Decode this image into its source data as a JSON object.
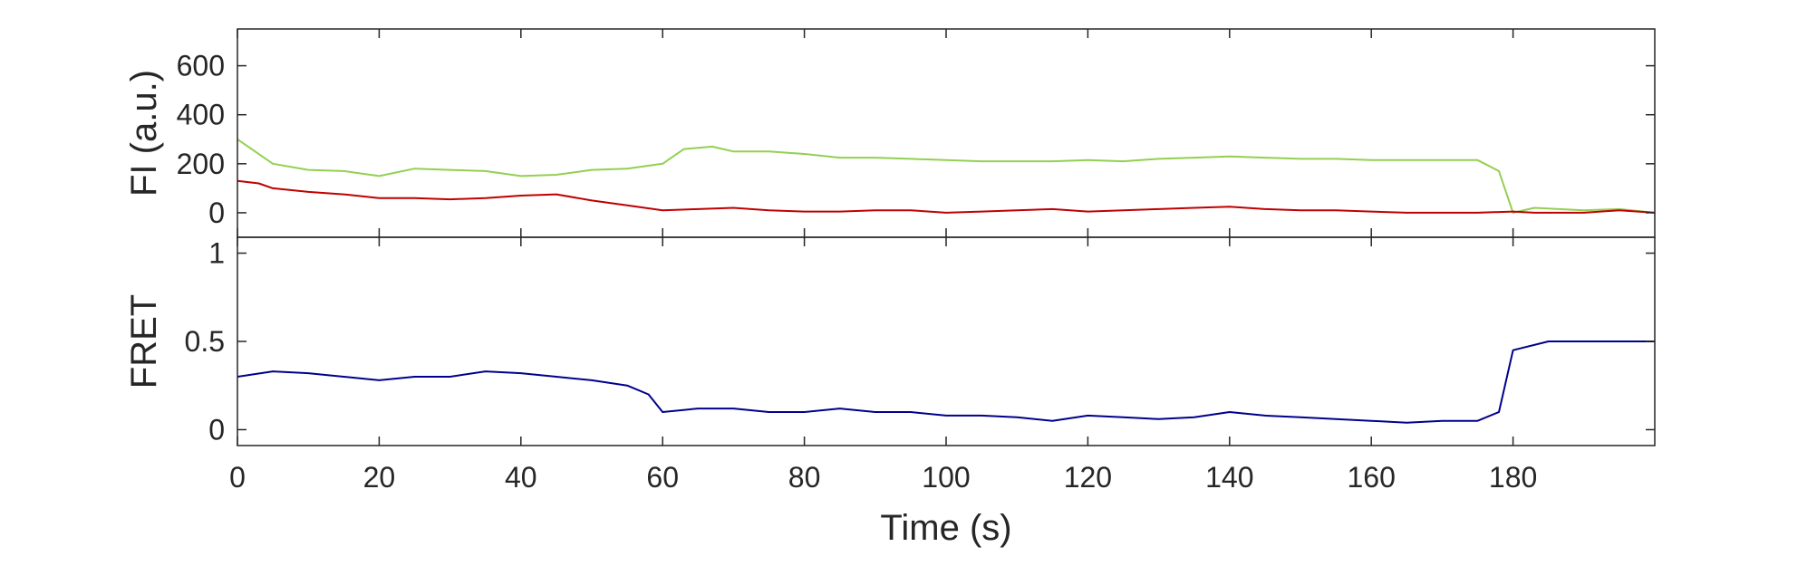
{
  "chart_data": [
    {
      "type": "line",
      "panel": "top",
      "ylabel": "FI (a.u.)",
      "xlim": [
        0,
        200
      ],
      "ylim": [
        -100,
        750
      ],
      "yticks": [
        0,
        200,
        400,
        600
      ],
      "ytick_labels": [
        "0",
        "200",
        "400",
        "600"
      ],
      "grid": false,
      "series": [
        {
          "color": "#92d050",
          "x": [
            0,
            2,
            5,
            10,
            15,
            20,
            25,
            30,
            35,
            40,
            45,
            50,
            55,
            60,
            63,
            67,
            70,
            75,
            80,
            85,
            90,
            95,
            100,
            105,
            110,
            115,
            120,
            125,
            130,
            135,
            140,
            145,
            150,
            155,
            160,
            165,
            170,
            175,
            178,
            180,
            183,
            190,
            195,
            200
          ],
          "values": [
            300,
            260,
            200,
            175,
            170,
            150,
            180,
            175,
            170,
            150,
            155,
            175,
            180,
            200,
            260,
            270,
            250,
            250,
            240,
            225,
            225,
            220,
            215,
            210,
            210,
            210,
            215,
            210,
            220,
            225,
            230,
            225,
            220,
            220,
            215,
            215,
            215,
            215,
            170,
            0,
            20,
            10,
            15,
            0
          ]
        },
        {
          "color": "#c00000",
          "x": [
            0,
            3,
            5,
            10,
            15,
            20,
            25,
            30,
            35,
            40,
            45,
            50,
            55,
            60,
            65,
            70,
            75,
            80,
            85,
            90,
            95,
            100,
            105,
            110,
            115,
            120,
            125,
            130,
            135,
            140,
            145,
            150,
            155,
            160,
            165,
            170,
            175,
            180,
            183,
            190,
            195,
            200
          ],
          "values": [
            130,
            120,
            100,
            85,
            75,
            60,
            60,
            55,
            60,
            70,
            75,
            50,
            30,
            10,
            15,
            20,
            10,
            5,
            5,
            10,
            10,
            0,
            5,
            10,
            15,
            5,
            10,
            15,
            20,
            25,
            15,
            10,
            10,
            5,
            0,
            0,
            0,
            5,
            0,
            0,
            10,
            0
          ]
        }
      ]
    },
    {
      "type": "line",
      "panel": "bottom",
      "xlabel": "Time (s)",
      "ylabel": "FRET",
      "xlim": [
        0,
        200
      ],
      "ylim": [
        -0.09,
        1.09
      ],
      "xticks": [
        0,
        20,
        40,
        60,
        80,
        100,
        120,
        140,
        160,
        180
      ],
      "xtick_labels": [
        "0",
        "20",
        "40",
        "60",
        "80",
        "100",
        "120",
        "140",
        "160",
        "180"
      ],
      "yticks": [
        0,
        0.5,
        1
      ],
      "ytick_labels": [
        "0",
        "0.5",
        "1"
      ],
      "grid": false,
      "series": [
        {
          "color": "#00008b",
          "x": [
            0,
            5,
            10,
            15,
            20,
            25,
            30,
            35,
            40,
            45,
            50,
            55,
            58,
            60,
            65,
            70,
            75,
            80,
            85,
            90,
            95,
            100,
            105,
            110,
            115,
            120,
            125,
            130,
            135,
            140,
            145,
            150,
            155,
            160,
            165,
            170,
            175,
            178,
            180,
            185,
            190,
            195,
            200
          ],
          "values": [
            0.3,
            0.33,
            0.32,
            0.3,
            0.28,
            0.3,
            0.3,
            0.33,
            0.32,
            0.3,
            0.28,
            0.25,
            0.2,
            0.1,
            0.12,
            0.12,
            0.1,
            0.1,
            0.12,
            0.1,
            0.1,
            0.08,
            0.08,
            0.07,
            0.05,
            0.08,
            0.07,
            0.06,
            0.07,
            0.1,
            0.08,
            0.07,
            0.06,
            0.05,
            0.04,
            0.05,
            0.05,
            0.1,
            0.45,
            0.5,
            0.5,
            0.5,
            0.5
          ]
        }
      ]
    }
  ]
}
